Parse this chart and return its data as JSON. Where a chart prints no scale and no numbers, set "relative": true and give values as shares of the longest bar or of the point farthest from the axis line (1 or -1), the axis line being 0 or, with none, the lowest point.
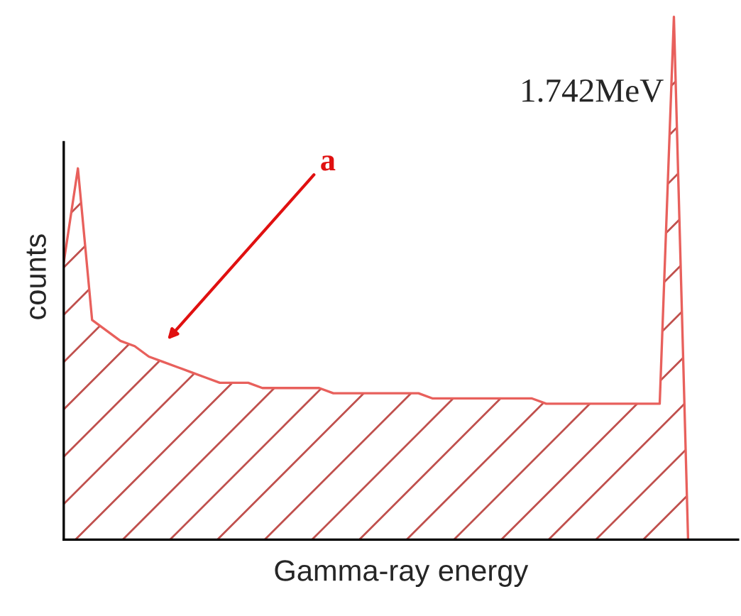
{
  "chart_data": {
    "type": "area",
    "relative": true,
    "xlabel": "Gamma-ray energy",
    "ylabel": "counts",
    "categories": [
      null,
      null,
      null,
      null,
      null,
      null,
      null,
      null,
      null,
      null,
      null,
      null,
      null,
      null,
      null,
      null,
      null,
      null,
      null,
      null,
      null,
      null,
      null,
      null,
      null,
      null,
      null,
      null,
      null,
      null,
      null,
      null,
      null,
      null,
      null,
      null,
      null,
      null,
      null,
      null,
      null,
      null,
      null,
      null,
      null
    ],
    "series": [
      {
        "color": "#e8605c",
        "values": [
          0.53,
          0.71,
          0.42,
          0.4,
          0.38,
          0.37,
          0.35,
          0.34,
          0.33,
          0.32,
          0.31,
          0.3,
          0.3,
          0.3,
          0.29,
          0.29,
          0.29,
          0.29,
          0.29,
          0.28,
          0.28,
          0.28,
          0.28,
          0.28,
          0.28,
          0.28,
          0.27,
          0.27,
          0.27,
          0.27,
          0.27,
          0.27,
          0.27,
          0.27,
          0.26,
          0.26,
          0.26,
          0.26,
          0.26,
          0.26,
          0.26,
          0.26,
          0.26,
          1.0,
          0
        ]
      }
    ],
    "annotations": [
      "1.742MeV",
      "a"
    ],
    "tick_labels": false
  }
}
